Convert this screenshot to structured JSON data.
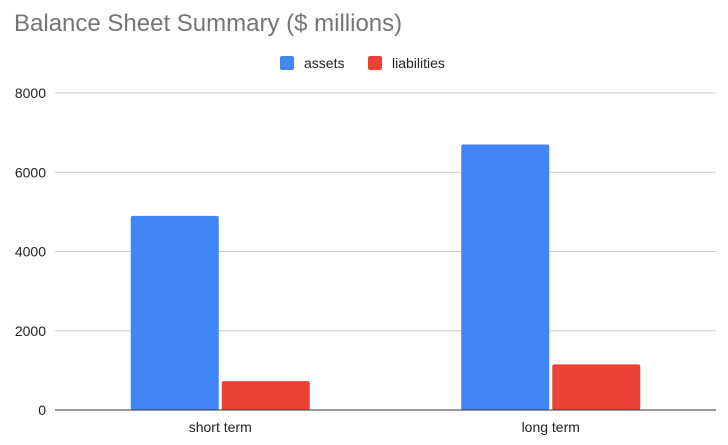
{
  "chart_data": {
    "type": "bar",
    "title": "Balance Sheet Summary ($ millions)",
    "xlabel": "",
    "ylabel": "",
    "categories": [
      "short term",
      "long term"
    ],
    "series": [
      {
        "name": "assets",
        "values": [
          4900,
          6700
        ],
        "color": "#4285F4"
      },
      {
        "name": "liabilities",
        "values": [
          730,
          1150
        ],
        "color": "#EA4335"
      }
    ],
    "yticks": [
      0,
      2000,
      4000,
      6000,
      8000
    ],
    "tick_labels": [
      "0",
      "2000",
      "4000",
      "6000",
      "8000"
    ],
    "ylim": [
      0,
      8000
    ],
    "grid": true,
    "legend_position": "top-center"
  }
}
